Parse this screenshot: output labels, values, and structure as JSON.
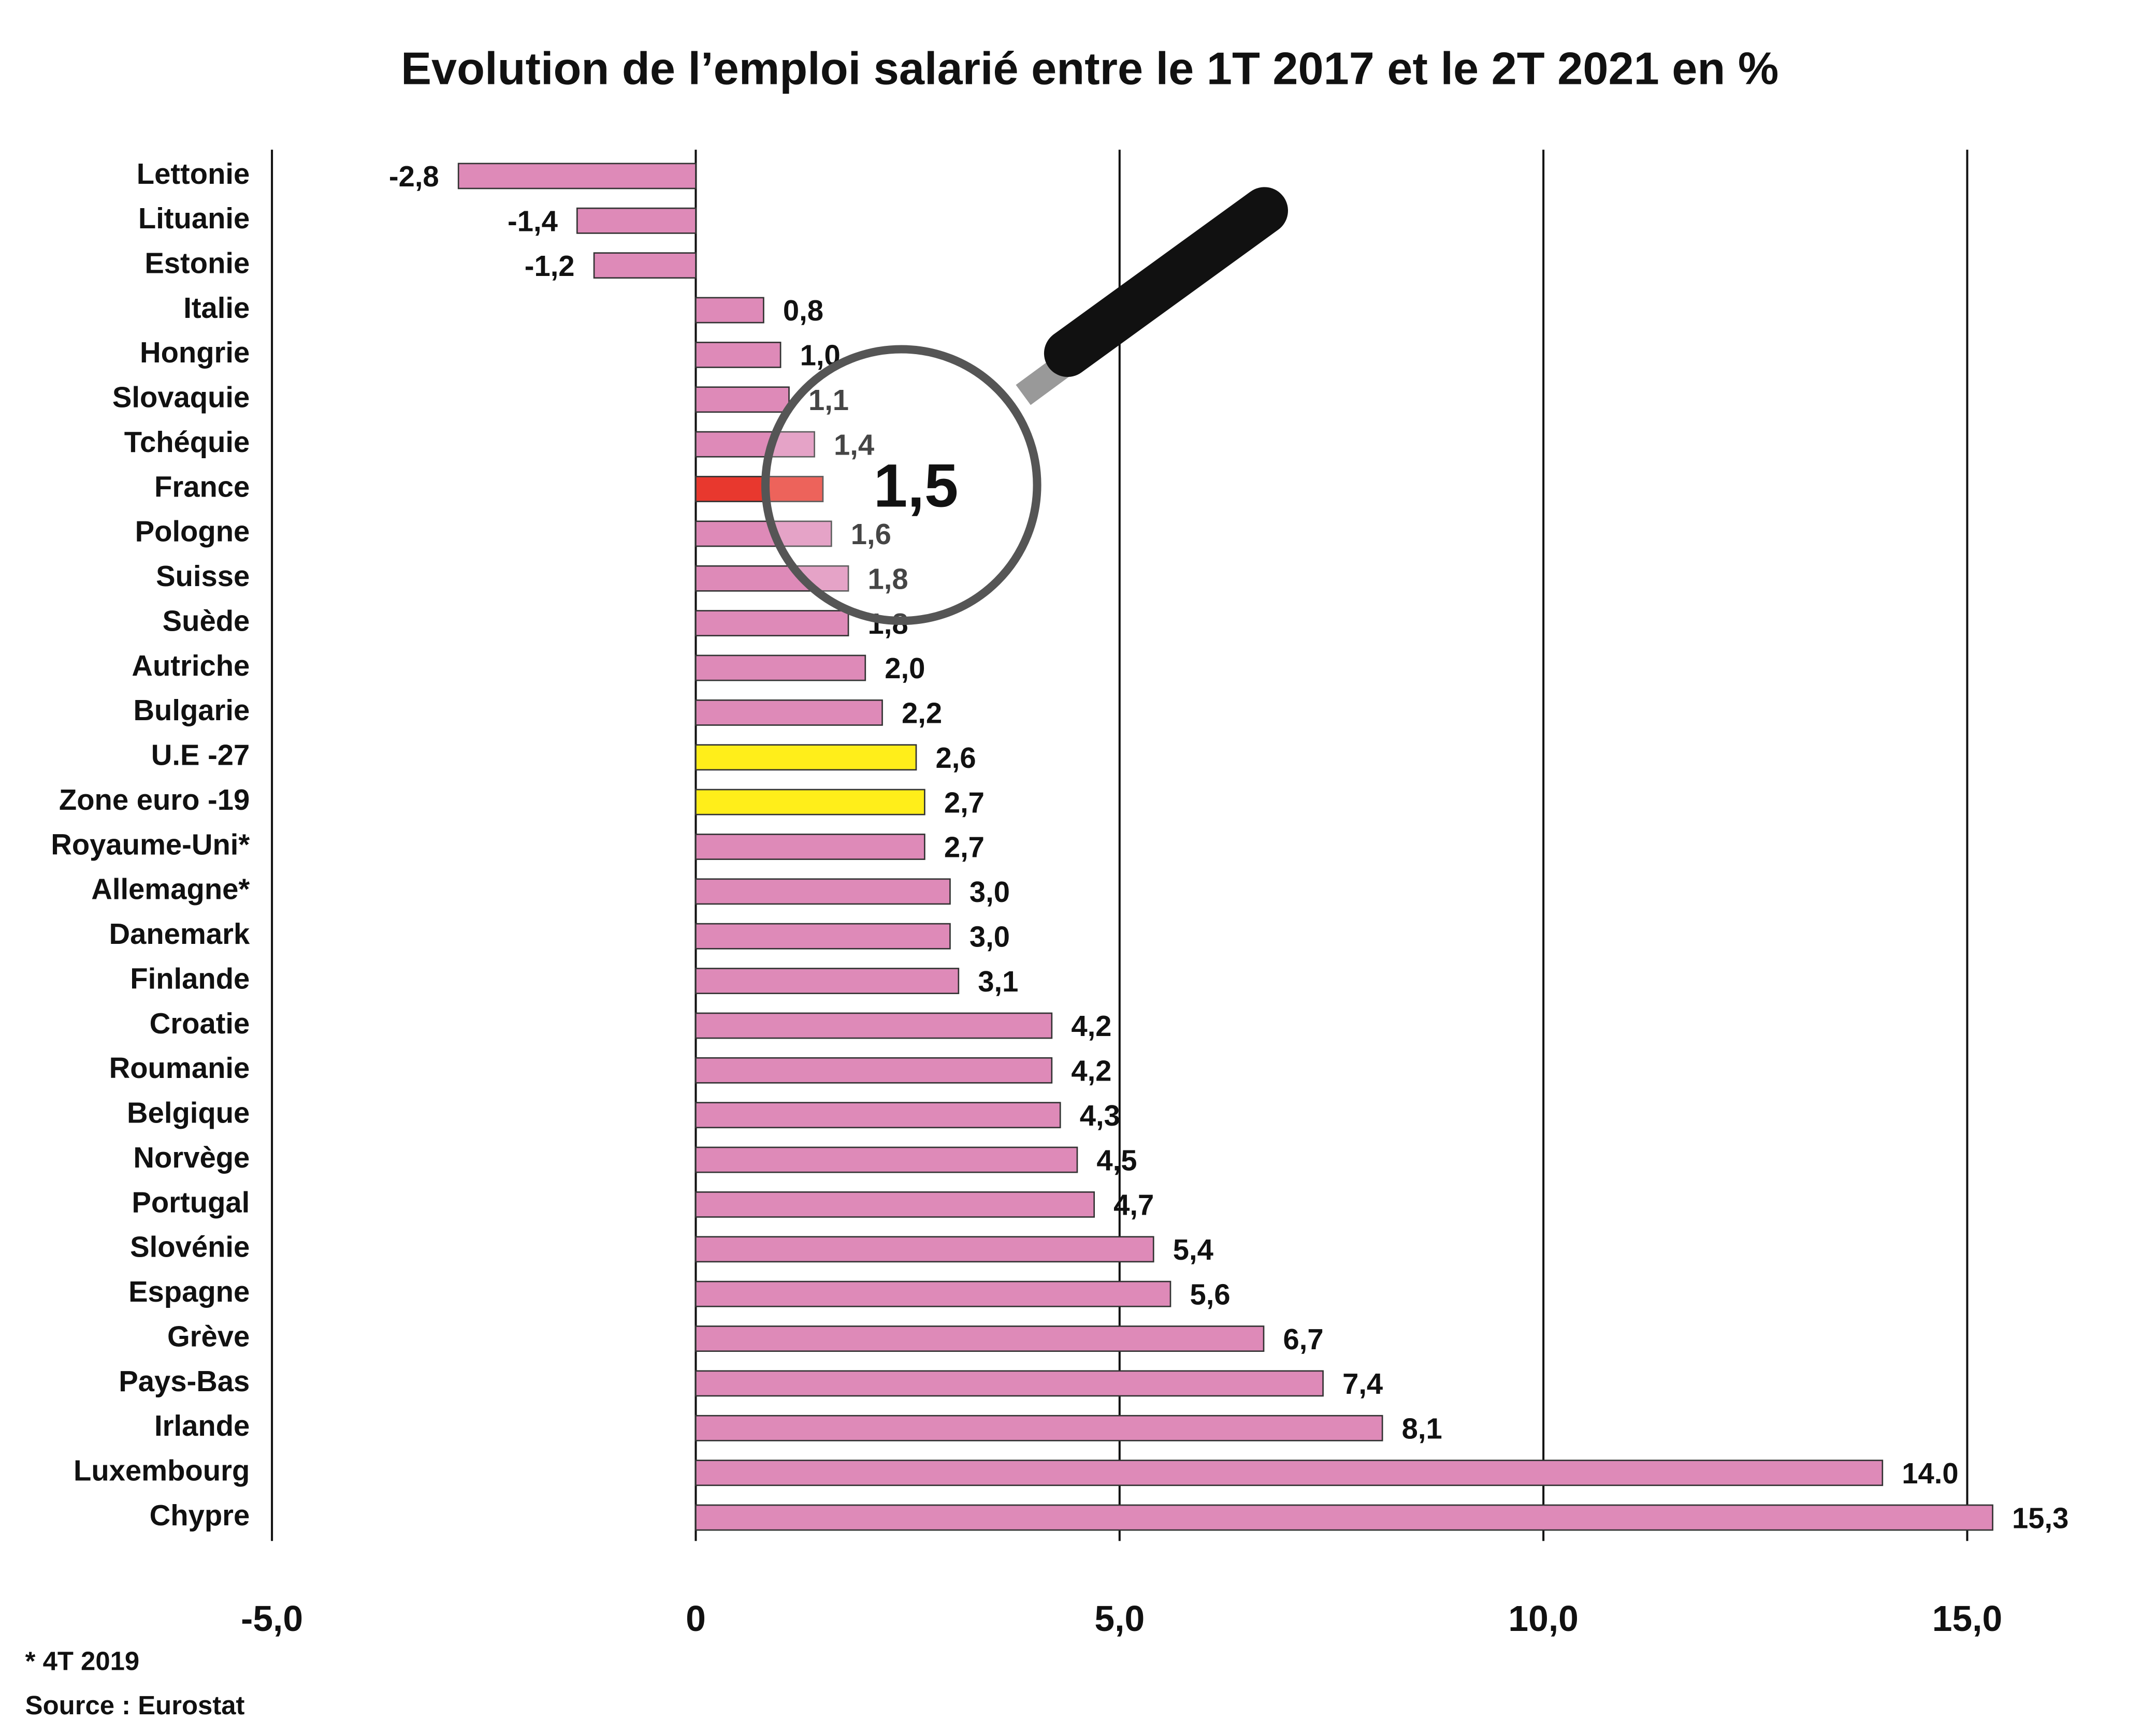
{
  "chart_data": {
    "type": "bar",
    "orientation": "horizontal",
    "title": "Evolution de l’emploi salarié entre le 1T 2017 et le 2T 2021 en %",
    "categories": [
      "Lettonie",
      "Lituanie",
      "Estonie",
      "Italie",
      "Hongrie",
      "Slovaquie",
      "Tchéquie",
      "France",
      "Pologne",
      "Suisse",
      "Suède",
      "Autriche",
      "Bulgarie",
      "U.E -27",
      "Zone euro -19",
      "Royaume-Uni*",
      "Allemagne*",
      "Danemark",
      "Finlande",
      "Croatie",
      "Roumanie",
      "Belgique",
      "Norvège",
      "Portugal",
      "Slovénie",
      "Espagne",
      "Grève",
      "Pays-Bas",
      "Irlande",
      "Luxembourg",
      "Chypre"
    ],
    "values": [
      -2.8,
      -1.4,
      -1.2,
      0.8,
      1.0,
      1.1,
      1.4,
      1.5,
      1.6,
      1.8,
      1.8,
      2.0,
      2.2,
      2.6,
      2.7,
      2.7,
      3.0,
      3.0,
      3.1,
      4.2,
      4.2,
      4.3,
      4.5,
      4.7,
      5.4,
      5.6,
      6.7,
      7.4,
      8.1,
      14.0,
      15.3
    ],
    "value_labels": [
      "-2,8",
      "-1,4",
      "-1,2",
      "0,8",
      "1,0",
      "1,1",
      "1,4",
      "1,5",
      "1,6",
      "1,8",
      "1,8",
      "2,0",
      "2,2",
      "2,6",
      "2,7",
      "2,7",
      "3,0",
      "3,0",
      "3,1",
      "4,2",
      "4,2",
      "4,3",
      "4,5",
      "4,7",
      "5,4",
      "5,6",
      "6,7",
      "7,4",
      "8,1",
      "14.0",
      "15,3"
    ],
    "colors": [
      "#de8ab8",
      "#de8ab8",
      "#de8ab8",
      "#de8ab8",
      "#de8ab8",
      "#de8ab8",
      "#de8ab8",
      "#e8382e",
      "#de8ab8",
      "#de8ab8",
      "#de8ab8",
      "#de8ab8",
      "#de8ab8",
      "#ffee1a",
      "#ffee1a",
      "#de8ab8",
      "#de8ab8",
      "#de8ab8",
      "#de8ab8",
      "#de8ab8",
      "#de8ab8",
      "#de8ab8",
      "#de8ab8",
      "#de8ab8",
      "#de8ab8",
      "#de8ab8",
      "#de8ab8",
      "#de8ab8",
      "#de8ab8",
      "#de8ab8",
      "#de8ab8"
    ],
    "highlight": "France",
    "xlim": [
      -5,
      15
    ],
    "xticks": [
      {
        "value": -5,
        "label": "-5,0"
      },
      0,
      {
        "value": 5,
        "label": "5,0"
      },
      {
        "value": 10,
        "label": "10,0"
      },
      {
        "value": 15,
        "label": "15,0"
      }
    ],
    "grid": true,
    "footnote": "* 4T 2019",
    "source": "Source : Eurostat"
  }
}
